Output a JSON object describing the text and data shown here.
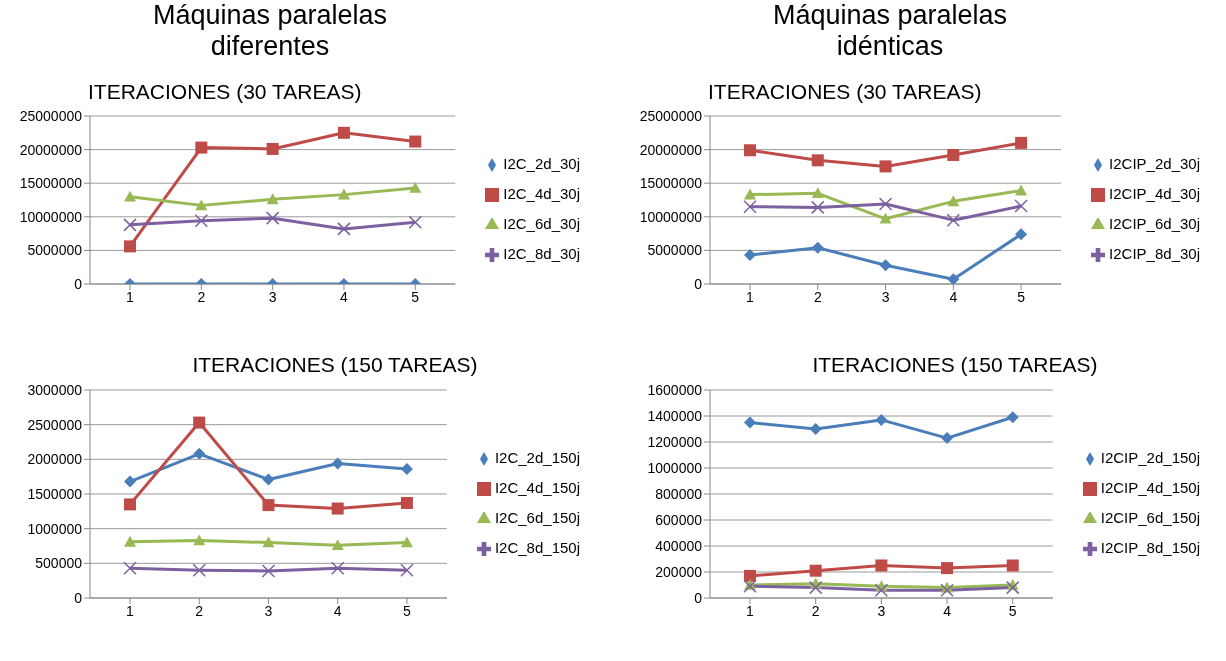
{
  "chart_data": [
    {
      "type": "line",
      "title": "Máquinas paralelas diferentes",
      "subtitle": "ITERACIONES (30 TAREAS)",
      "categories": [
        "1",
        "2",
        "3",
        "4",
        "5"
      ],
      "ylim": [
        0,
        25000000
      ],
      "yticks": [
        0,
        5000000,
        10000000,
        15000000,
        20000000,
        25000000
      ],
      "grid": "y",
      "legend": "right",
      "series": [
        {
          "name": "I2C_2d_30j",
          "color": "#4a7ebb",
          "marker": "diamond",
          "values": [
            0,
            0,
            0,
            0,
            0
          ]
        },
        {
          "name": "I2C_4d_30j",
          "color": "#be4b48",
          "marker": "square",
          "values": [
            5600000,
            20300000,
            20100000,
            22500000,
            21200000
          ]
        },
        {
          "name": "I2C_6d_30j",
          "color": "#98b954",
          "marker": "triangle",
          "values": [
            13000000,
            11700000,
            12600000,
            13300000,
            14300000
          ]
        },
        {
          "name": "I2C_8d_30j",
          "color": "#7d60a0",
          "marker": "cross",
          "values": [
            8800000,
            9400000,
            9800000,
            8200000,
            9200000
          ]
        }
      ]
    },
    {
      "type": "line",
      "title": "Máquinas paralelas idénticas",
      "subtitle": "ITERACIONES (30 TAREAS)",
      "categories": [
        "1",
        "2",
        "3",
        "4",
        "5"
      ],
      "ylim": [
        0,
        25000000
      ],
      "yticks": [
        0,
        5000000,
        10000000,
        15000000,
        20000000,
        25000000
      ],
      "grid": "y",
      "legend": "right",
      "series": [
        {
          "name": "I2CIP_2d_30j",
          "color": "#4a7ebb",
          "marker": "diamond",
          "values": [
            4300000,
            5400000,
            2800000,
            700000,
            7400000
          ]
        },
        {
          "name": "I2CIP_4d_30j",
          "color": "#be4b48",
          "marker": "square",
          "values": [
            19900000,
            18400000,
            17500000,
            19200000,
            21000000
          ]
        },
        {
          "name": "I2CIP_6d_30j",
          "color": "#98b954",
          "marker": "triangle",
          "values": [
            13300000,
            13500000,
            9700000,
            12300000,
            13900000
          ]
        },
        {
          "name": "I2CIP_8d_30j",
          "color": "#7d60a0",
          "marker": "cross",
          "values": [
            11500000,
            11400000,
            11900000,
            9500000,
            11600000
          ]
        }
      ]
    },
    {
      "type": "line",
      "title": "ITERACIONES (150 TAREAS)",
      "categories": [
        "1",
        "2",
        "3",
        "4",
        "5"
      ],
      "ylim": [
        0,
        3000000
      ],
      "yticks": [
        0,
        500000,
        1000000,
        1500000,
        2000000,
        2500000,
        3000000
      ],
      "grid": "y",
      "legend": "right",
      "series": [
        {
          "name": "I2C_2d_150j",
          "color": "#4a7ebb",
          "marker": "diamond",
          "values": [
            1680000,
            2080000,
            1710000,
            1940000,
            1860000
          ]
        },
        {
          "name": "I2C_4d_150j",
          "color": "#be4b48",
          "marker": "square",
          "values": [
            1350000,
            2530000,
            1340000,
            1290000,
            1370000
          ]
        },
        {
          "name": "I2C_6d_150j",
          "color": "#98b954",
          "marker": "triangle",
          "values": [
            810000,
            830000,
            800000,
            760000,
            800000
          ]
        },
        {
          "name": "I2C_8d_150j",
          "color": "#7d60a0",
          "marker": "cross",
          "values": [
            430000,
            400000,
            390000,
            430000,
            400000
          ]
        }
      ]
    },
    {
      "type": "line",
      "title": "ITERACIONES (150 TAREAS)",
      "categories": [
        "1",
        "2",
        "3",
        "4",
        "5"
      ],
      "ylim": [
        0,
        1600000
      ],
      "yticks": [
        0,
        200000,
        400000,
        600000,
        800000,
        1000000,
        1200000,
        1400000,
        1600000
      ],
      "grid": "y",
      "legend": "right",
      "series": [
        {
          "name": "I2CIP_2d_150j",
          "color": "#4a7ebb",
          "marker": "diamond",
          "values": [
            1350000,
            1300000,
            1370000,
            1230000,
            1390000
          ]
        },
        {
          "name": "I2CIP_4d_150j",
          "color": "#be4b48",
          "marker": "square",
          "values": [
            170000,
            210000,
            250000,
            230000,
            250000
          ]
        },
        {
          "name": "I2CIP_6d_150j",
          "color": "#98b954",
          "marker": "triangle",
          "values": [
            100000,
            110000,
            90000,
            80000,
            100000
          ]
        },
        {
          "name": "I2CIP_8d_150j",
          "color": "#7d60a0",
          "marker": "cross",
          "values": [
            90000,
            80000,
            60000,
            60000,
            80000
          ]
        }
      ]
    }
  ]
}
